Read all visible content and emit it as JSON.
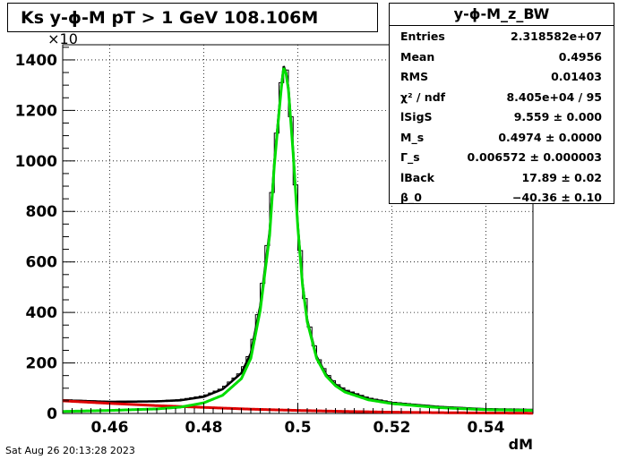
{
  "title": "Ks y-ϕ-M pT > 1 GeV  108.106M",
  "stats": {
    "name": "y-ϕ-M_z_BW",
    "rows": [
      {
        "label": "Entries",
        "value": "2.318582e+07"
      },
      {
        "label": "Mean",
        "value": "0.4956"
      },
      {
        "label": "RMS",
        "value": "0.01403"
      },
      {
        "label": "χ² / ndf",
        "value": "8.405e+04 / 95"
      },
      {
        "label": "lSigS",
        "value": "9.559 ± 0.000"
      },
      {
        "label": "M_s",
        "value": "0.4974 ± 0.0000"
      },
      {
        "label": "Γ_s",
        "value": "0.006572 ± 0.000003"
      },
      {
        "label": "lBack",
        "value": "17.89 ± 0.02"
      },
      {
        "label": "β_0",
        "value": "−40.36 ± 0.10"
      }
    ]
  },
  "footer": "Sat Aug 26 20:13:28 2023",
  "colors": {
    "histogram": "#000000",
    "fit": "#00dd00",
    "background": "#dd0000",
    "total": "#000000"
  },
  "chart_data": {
    "type": "line",
    "xlabel": "dM",
    "ylabel": "",
    "y_multiplier_label": "×10",
    "xlim": [
      0.45,
      0.55
    ],
    "ylim": [
      0,
      1460
    ],
    "xticks": [
      "0.46",
      "0.48",
      "0.5",
      "0.52",
      "0.54"
    ],
    "xtick_values": [
      0.46,
      0.48,
      0.5,
      0.52,
      0.54
    ],
    "yticks": [
      "0",
      "200",
      "400",
      "600",
      "800",
      "1000",
      "1200",
      "1400"
    ],
    "ytick_values": [
      0,
      200,
      400,
      600,
      800,
      1000,
      1200,
      1400
    ],
    "grid": true,
    "series": [
      {
        "role": "histogram",
        "x": [
          0.45,
          0.46,
          0.47,
          0.475,
          0.48,
          0.484,
          0.488,
          0.49,
          0.492,
          0.494,
          0.495,
          0.496,
          0.4965,
          0.497,
          0.4975,
          0.498,
          0.499,
          0.5,
          0.501,
          0.502,
          0.504,
          0.506,
          0.508,
          0.51,
          0.515,
          0.52,
          0.53,
          0.54,
          0.55
        ],
        "y": [
          55,
          48,
          50,
          55,
          70,
          100,
          165,
          245,
          440,
          740,
          1010,
          1210,
          1310,
          1375,
          1360,
          1300,
          1050,
          760,
          530,
          380,
          230,
          160,
          120,
          95,
          62,
          45,
          28,
          18,
          15
        ]
      },
      {
        "role": "total-fit",
        "x": [
          0.45,
          0.46,
          0.47,
          0.475,
          0.48,
          0.484,
          0.488,
          0.49,
          0.492,
          0.494,
          0.495,
          0.496,
          0.4965,
          0.497,
          0.4975,
          0.498,
          0.499,
          0.5,
          0.501,
          0.502,
          0.504,
          0.506,
          0.508,
          0.51,
          0.515,
          0.52,
          0.53,
          0.54,
          0.55
        ],
        "y": [
          52,
          46,
          48,
          52,
          66,
          96,
          160,
          238,
          425,
          720,
          995,
          1200,
          1300,
          1375,
          1350,
          1290,
          1040,
          745,
          515,
          370,
          225,
          155,
          115,
          90,
          58,
          42,
          26,
          17,
          14
        ]
      },
      {
        "role": "signal",
        "x": [
          0.45,
          0.46,
          0.47,
          0.475,
          0.48,
          0.484,
          0.488,
          0.49,
          0.492,
          0.494,
          0.495,
          0.496,
          0.4965,
          0.497,
          0.4975,
          0.498,
          0.499,
          0.5,
          0.501,
          0.502,
          0.504,
          0.506,
          0.508,
          0.51,
          0.515,
          0.52,
          0.53,
          0.54,
          0.55
        ],
        "y": [
          8,
          12,
          18,
          25,
          42,
          72,
          138,
          218,
          408,
          705,
          982,
          1190,
          1290,
          1368,
          1345,
          1282,
          1032,
          738,
          508,
          363,
          218,
          149,
          110,
          85,
          54,
          39,
          23,
          15,
          12
        ]
      },
      {
        "role": "background",
        "x": [
          0.45,
          0.46,
          0.47,
          0.48,
          0.49,
          0.5,
          0.51,
          0.52,
          0.53,
          0.54,
          0.55
        ],
        "y": [
          50,
          40,
          31,
          24,
          17,
          12,
          8,
          5,
          3,
          2,
          1
        ]
      }
    ]
  }
}
